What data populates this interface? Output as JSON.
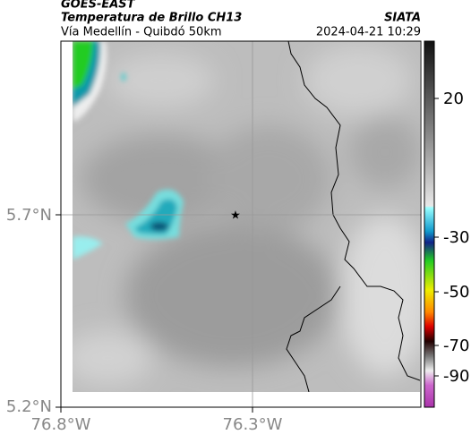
{
  "header": {
    "satellite": "GOES-EAST",
    "product": "Temperatura de Brillo CH13",
    "source": "SIATA",
    "region": "Vía Medellín - Quibdó 50km",
    "timestamp": "2024-04-21 10:29"
  },
  "axes": {
    "latitude_ticks": [
      "5.7°N",
      "5.2°N"
    ],
    "longitude_ticks": [
      "76.8°W",
      "76.3°W"
    ]
  },
  "colorbar": {
    "ticks": [
      "20",
      "-30",
      "-50",
      "-70",
      "-90"
    ]
  }
}
